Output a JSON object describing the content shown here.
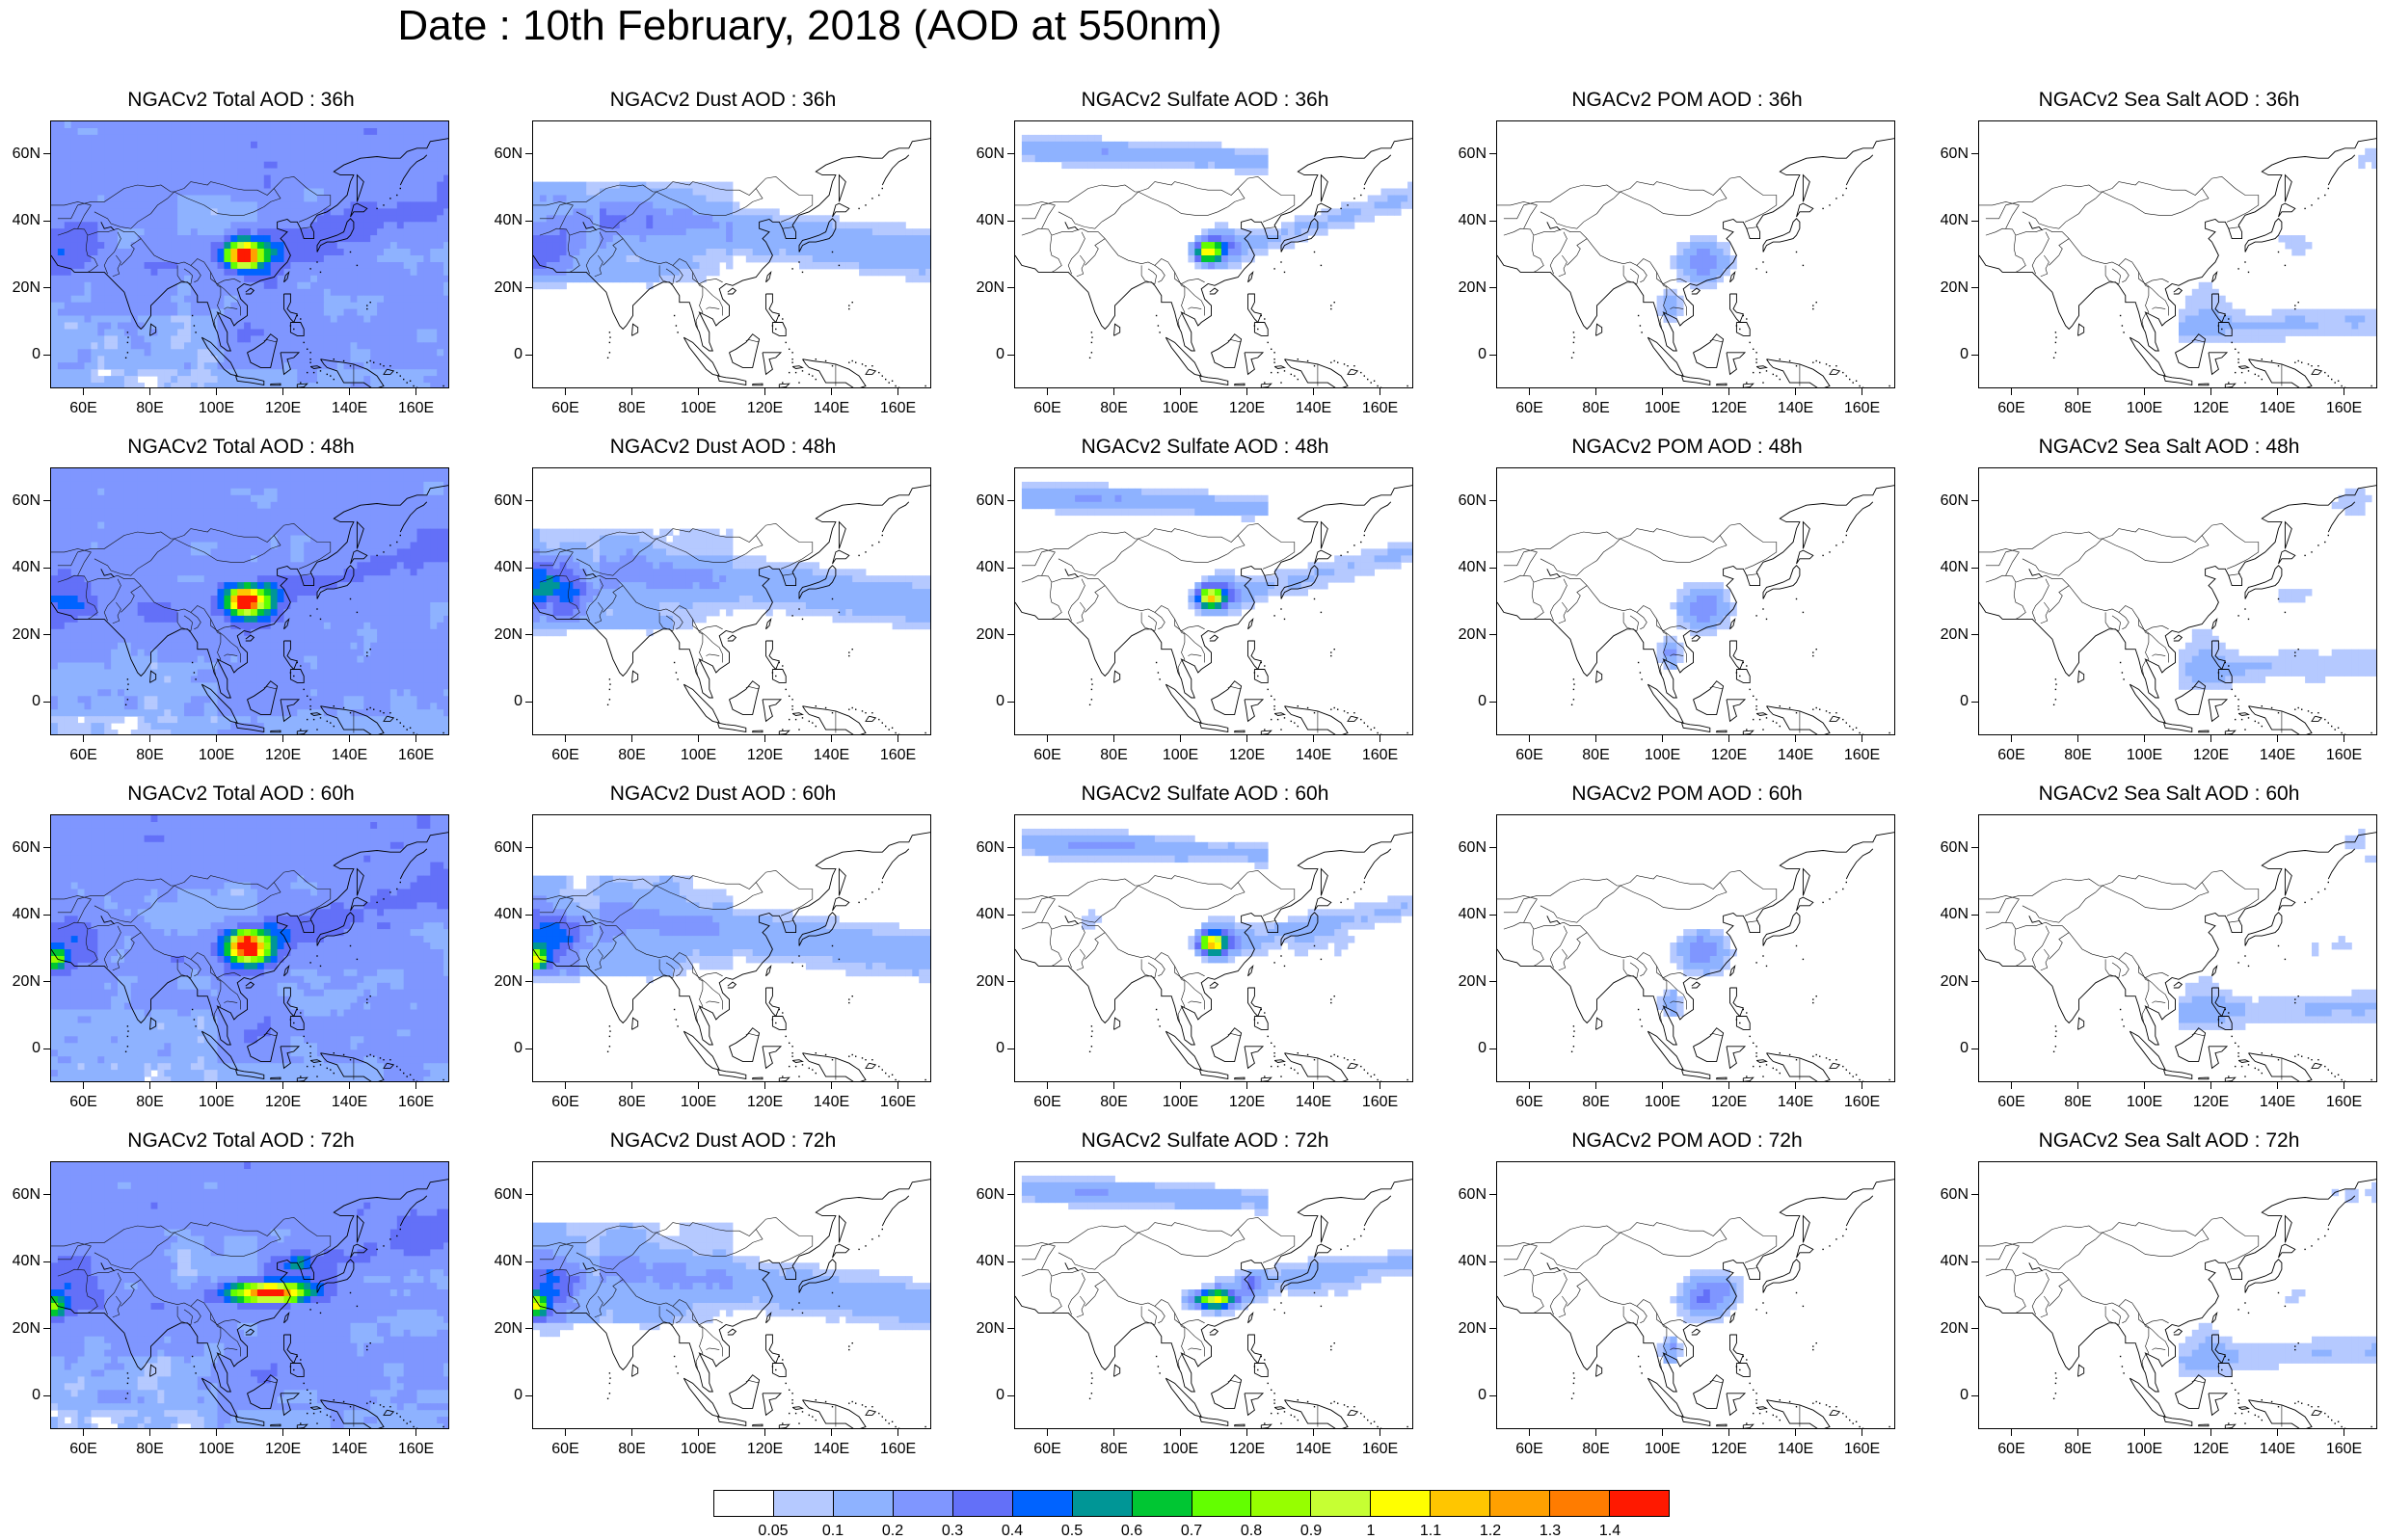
{
  "title": "Date : 10th February, 2018 (AOD at 550nm)",
  "x_ticks": [
    "60E",
    "80E",
    "100E",
    "120E",
    "140E",
    "160E"
  ],
  "y_ticks": [
    "60N",
    "40N",
    "20N",
    "0"
  ],
  "colorbar": {
    "labels": [
      "0.05",
      "0.1",
      "0.2",
      "0.3",
      "0.4",
      "0.5",
      "0.6",
      "0.7",
      "0.8",
      "0.9",
      "1",
      "1.1",
      "1.2",
      "1.3",
      "1.4"
    ],
    "colors": [
      "#ffffff",
      "#d6e2ff",
      "#b5c9ff",
      "#8eb2ff",
      "#7f96ff",
      "#6370f8",
      "#0063ff",
      "#009696",
      "#00c633",
      "#63ff00",
      "#96ff00",
      "#c6ff33",
      "#ffff00",
      "#ffc600",
      "#ffa000",
      "#ff7c00",
      "#ff1900"
    ]
  },
  "panels": [
    {
      "title": "NGACv2 Total AOD : 36h",
      "species": "total",
      "hour": 36
    },
    {
      "title": "NGACv2 Dust AOD : 36h",
      "species": "dust",
      "hour": 36
    },
    {
      "title": "NGACv2 Sulfate AOD : 36h",
      "species": "sulfate",
      "hour": 36
    },
    {
      "title": "NGACv2 POM AOD : 36h",
      "species": "pom",
      "hour": 36
    },
    {
      "title": "NGACv2 Sea Salt AOD : 36h",
      "species": "seasalt",
      "hour": 36
    },
    {
      "title": "NGACv2 Total AOD : 48h",
      "species": "total",
      "hour": 48
    },
    {
      "title": "NGACv2 Dust AOD : 48h",
      "species": "dust",
      "hour": 48
    },
    {
      "title": "NGACv2 Sulfate AOD : 48h",
      "species": "sulfate",
      "hour": 48
    },
    {
      "title": "NGACv2 POM AOD : 48h",
      "species": "pom",
      "hour": 48
    },
    {
      "title": "NGACv2 Sea Salt AOD : 48h",
      "species": "seasalt",
      "hour": 48
    },
    {
      "title": "NGACv2 Total AOD : 60h",
      "species": "total",
      "hour": 60
    },
    {
      "title": "NGACv2 Dust AOD : 60h",
      "species": "dust",
      "hour": 60
    },
    {
      "title": "NGACv2 Sulfate AOD : 60h",
      "species": "sulfate",
      "hour": 60
    },
    {
      "title": "NGACv2 POM AOD : 60h",
      "species": "pom",
      "hour": 60
    },
    {
      "title": "NGACv2 Sea Salt AOD : 60h",
      "species": "seasalt",
      "hour": 60
    },
    {
      "title": "NGACv2 Total AOD : 72h",
      "species": "total",
      "hour": 72
    },
    {
      "title": "NGACv2 Dust AOD : 72h",
      "species": "dust",
      "hour": 72
    },
    {
      "title": "NGACv2 Sulfate AOD : 72h",
      "species": "sulfate",
      "hour": 72
    },
    {
      "title": "NGACv2 POM AOD : 72h",
      "species": "pom",
      "hour": 72
    },
    {
      "title": "NGACv2 Sea Salt  AOD : 72h",
      "species": "seasalt",
      "hour": 72
    }
  ]
}
